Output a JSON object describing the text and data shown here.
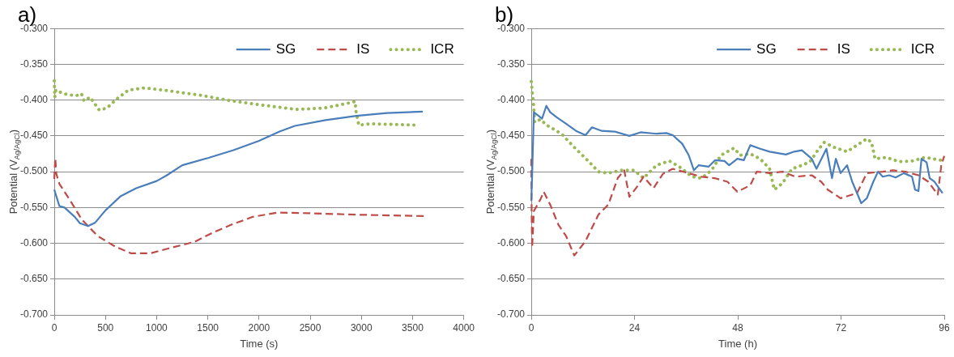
{
  "chart_data": [
    {
      "type": "line",
      "title": "a)",
      "xlabel": "Time (s)",
      "ylabel": "Potential (V$_{Ag/AgCl}$)",
      "xlim": [
        0,
        4000
      ],
      "xticks": [
        0,
        500,
        1000,
        1500,
        2000,
        2500,
        3000,
        3500,
        4000
      ],
      "ylim": [
        -0.7,
        -0.3
      ],
      "yticks": [
        {
          "value": -0.7,
          "label": "-0.700"
        },
        {
          "value": -0.65,
          "label": "-0.650"
        },
        {
          "value": -0.6,
          "label": "-0.600"
        },
        {
          "value": -0.55,
          "label": "-0.550"
        },
        {
          "value": -0.5,
          "label": "-0.500"
        },
        {
          "value": -0.45,
          "label": "-0.450"
        },
        {
          "value": -0.4,
          "label": "-0.400"
        },
        {
          "value": -0.35,
          "label": "-0.350"
        },
        {
          "value": -0.3,
          "label": "-0.300"
        }
      ],
      "grid": "y",
      "legend": "top right",
      "marker": "none",
      "series": [
        {
          "name": "SG",
          "color": "#4a7ebb",
          "line_style": "solid",
          "x": [
            0,
            50,
            100,
            200,
            250,
            330,
            400,
            500,
            650,
            800,
            1000,
            1100,
            1250,
            1500,
            1750,
            2000,
            2200,
            2350,
            2650,
            2950,
            3250,
            3600
          ],
          "values": [
            -0.525,
            -0.548,
            -0.55,
            -0.563,
            -0.572,
            -0.576,
            -0.571,
            -0.554,
            -0.534,
            -0.523,
            -0.513,
            -0.505,
            -0.491,
            -0.481,
            -0.47,
            -0.457,
            -0.444,
            -0.436,
            -0.428,
            -0.422,
            -0.418,
            -0.416
          ]
        },
        {
          "name": "IS",
          "color": "#be4b48",
          "line_style": "dashed",
          "x": [
            0,
            10,
            20,
            50,
            150,
            270,
            425,
            600,
            750,
            940,
            1120,
            1370,
            1550,
            1730,
            1940,
            2185,
            2490,
            2940,
            3610
          ],
          "values": [
            -0.51,
            -0.481,
            -0.503,
            -0.517,
            -0.539,
            -0.567,
            -0.59,
            -0.605,
            -0.614,
            -0.614,
            -0.607,
            -0.598,
            -0.585,
            -0.574,
            -0.563,
            -0.557,
            -0.558,
            -0.56,
            -0.562
          ]
        },
        {
          "name": "ICR",
          "color": "#98b954",
          "line_style": "dotted",
          "x": [
            0,
            5,
            15,
            90,
            210,
            265,
            290,
            350,
            440,
            515,
            605,
            725,
            880,
            1060,
            1420,
            1730,
            2030,
            2365,
            2640,
            2880,
            2940,
            2945,
            2975,
            3095,
            3535
          ],
          "values": [
            -0.373,
            -0.396,
            -0.386,
            -0.391,
            -0.394,
            -0.391,
            -0.401,
            -0.396,
            -0.414,
            -0.411,
            -0.399,
            -0.386,
            -0.383,
            -0.386,
            -0.393,
            -0.401,
            -0.407,
            -0.413,
            -0.411,
            -0.404,
            -0.402,
            -0.414,
            -0.435,
            -0.433,
            -0.435
          ]
        }
      ]
    },
    {
      "type": "line",
      "title": "b)",
      "xlabel": "Time (h)",
      "ylabel": "Potential (V$_{Ag/AgCl}$)",
      "xlim": [
        0,
        96
      ],
      "xticks": [
        0,
        24,
        48,
        72,
        96
      ],
      "ylim": [
        -0.7,
        -0.3
      ],
      "yticks": [
        {
          "value": -0.7,
          "label": "-0.700"
        },
        {
          "value": -0.65,
          "label": "-0.650"
        },
        {
          "value": -0.6,
          "label": "-0.600"
        },
        {
          "value": -0.55,
          "label": "-0.550"
        },
        {
          "value": -0.5,
          "label": "-0.500"
        },
        {
          "value": -0.45,
          "label": "-0.450"
        },
        {
          "value": -0.4,
          "label": "-0.400"
        },
        {
          "value": -0.35,
          "label": "-0.350"
        },
        {
          "value": -0.3,
          "label": "-0.300"
        }
      ],
      "grid": "y",
      "legend": "top right",
      "marker": "none",
      "series": [
        {
          "name": "SG",
          "color": "#4a7ebb",
          "line_style": "solid",
          "x": [
            0,
            0.2,
            0.6,
            1.7,
            2.5,
            3.5,
            4.4,
            5.9,
            8.1,
            10.4,
            12.6,
            14.1,
            16.4,
            19.4,
            22.8,
            25.4,
            29.1,
            31.4,
            32.9,
            35.1,
            36.6,
            37.8,
            38.9,
            41.2,
            42.7,
            44.9,
            46,
            47.9,
            49.4,
            50.9,
            53.2,
            55.4,
            59.2,
            61.1,
            62.9,
            65.2,
            66.3,
            68.6,
            69.9,
            70.8,
            71.9,
            73.4,
            74.6,
            76.7,
            78,
            79.5,
            80.6,
            81.7,
            83.2,
            84.7,
            86.6,
            88.5,
            89.2,
            90,
            90.7,
            91.9,
            92.6,
            93.7,
            95.6
          ],
          "values": [
            -0.541,
            -0.505,
            -0.417,
            -0.422,
            -0.426,
            -0.408,
            -0.417,
            -0.424,
            -0.433,
            -0.443,
            -0.449,
            -0.438,
            -0.443,
            -0.444,
            -0.45,
            -0.445,
            -0.447,
            -0.446,
            -0.449,
            -0.461,
            -0.477,
            -0.498,
            -0.491,
            -0.493,
            -0.484,
            -0.485,
            -0.491,
            -0.482,
            -0.484,
            -0.463,
            -0.468,
            -0.472,
            -0.476,
            -0.472,
            -0.47,
            -0.482,
            -0.496,
            -0.468,
            -0.509,
            -0.482,
            -0.502,
            -0.491,
            -0.514,
            -0.544,
            -0.537,
            -0.514,
            -0.5,
            -0.507,
            -0.505,
            -0.508,
            -0.502,
            -0.507,
            -0.525,
            -0.527,
            -0.482,
            -0.487,
            -0.509,
            -0.514,
            -0.53
          ]
        },
        {
          "name": "IS",
          "color": "#be4b48",
          "line_style": "dashed",
          "x": [
            0,
            0.1,
            0.2,
            0.6,
            2.1,
            2.9,
            4.4,
            6.3,
            8.1,
            10,
            12.6,
            15.6,
            17.9,
            20.1,
            21.6,
            22.8,
            24.6,
            26.1,
            28.4,
            30.6,
            32.9,
            35.9,
            39.6,
            42.6,
            45.6,
            47.9,
            50.9,
            52.4,
            55.4,
            58.4,
            61.4,
            65.2,
            67.4,
            68.9,
            71.9,
            75.7,
            78,
            81.7,
            84,
            87,
            90,
            92.3,
            94.5,
            95.3,
            96
          ],
          "values": [
            -0.482,
            -0.564,
            -0.606,
            -0.555,
            -0.539,
            -0.528,
            -0.546,
            -0.574,
            -0.59,
            -0.617,
            -0.597,
            -0.56,
            -0.546,
            -0.509,
            -0.498,
            -0.535,
            -0.521,
            -0.507,
            -0.523,
            -0.503,
            -0.496,
            -0.501,
            -0.507,
            -0.509,
            -0.514,
            -0.528,
            -0.519,
            -0.5,
            -0.502,
            -0.5,
            -0.507,
            -0.505,
            -0.514,
            -0.525,
            -0.537,
            -0.53,
            -0.502,
            -0.5,
            -0.498,
            -0.5,
            -0.505,
            -0.514,
            -0.532,
            -0.491,
            -0.478
          ]
        },
        {
          "name": "ICR",
          "color": "#98b954",
          "line_style": "dotted",
          "x": [
            0,
            0.2,
            0.6,
            0.8,
            2.1,
            3.6,
            7,
            10,
            13.4,
            15.6,
            17.9,
            20.9,
            23.9,
            26.1,
            29.1,
            32.1,
            34.4,
            37.4,
            39.6,
            41.9,
            44.1,
            47.1,
            48.6,
            50.9,
            53.2,
            55.4,
            56.5,
            58.4,
            60.6,
            62.9,
            64.8,
            66.6,
            68.1,
            70.4,
            73.4,
            75.7,
            78,
            79.1,
            79.9,
            82.5,
            85.5,
            88.5,
            91.5,
            95.2
          ],
          "values": [
            -0.374,
            -0.387,
            -0.41,
            -0.431,
            -0.427,
            -0.435,
            -0.447,
            -0.466,
            -0.486,
            -0.5,
            -0.502,
            -0.498,
            -0.498,
            -0.509,
            -0.491,
            -0.485,
            -0.493,
            -0.507,
            -0.509,
            -0.498,
            -0.477,
            -0.467,
            -0.477,
            -0.475,
            -0.482,
            -0.496,
            -0.525,
            -0.516,
            -0.496,
            -0.491,
            -0.486,
            -0.47,
            -0.459,
            -0.466,
            -0.472,
            -0.463,
            -0.454,
            -0.459,
            -0.482,
            -0.48,
            -0.486,
            -0.485,
            -0.48,
            -0.484
          ]
        }
      ]
    }
  ]
}
